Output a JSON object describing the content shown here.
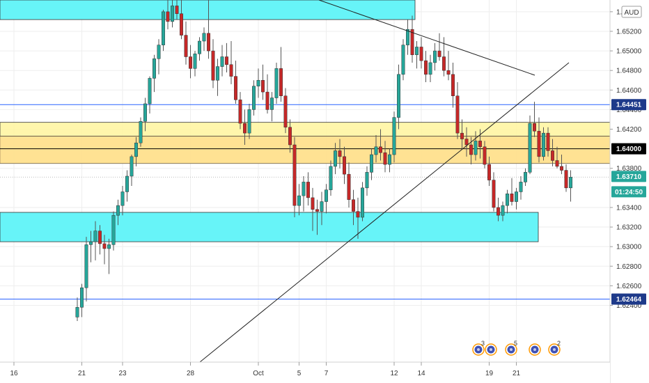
{
  "chart_data": {
    "type": "candlestick",
    "title": "",
    "currency_label": "AUD",
    "ylim": [
      1.6182,
      1.6552
    ],
    "y_ticks": [
      "1.65200",
      "1.65000",
      "1.64800",
      "1.64600",
      "1.64200",
      "1.63800",
      "1.63400",
      "1.63200",
      "1.63000",
      "1.62800",
      "1.62600"
    ],
    "y_ticks_partial": [
      "1.65400",
      "1.64400",
      "1.62400"
    ],
    "x_ticks": [
      {
        "label": "16",
        "i": -24
      },
      {
        "label": "21",
        "i": -9
      },
      {
        "label": "23",
        "i": 0
      },
      {
        "label": "28",
        "i": 15
      },
      {
        "label": "Oct",
        "i": 30
      },
      {
        "label": "5",
        "i": 39
      },
      {
        "label": "7",
        "i": 45
      },
      {
        "label": "12",
        "i": 60
      },
      {
        "label": "14",
        "i": 66
      },
      {
        "label": "19",
        "i": 81
      },
      {
        "label": "21",
        "i": 87
      }
    ],
    "first_index": -10,
    "candles": [
      [
        1.6228,
        1.6248,
        1.6224,
        1.6238
      ],
      [
        1.6238,
        1.6262,
        1.6228,
        1.6258
      ],
      [
        1.6258,
        1.631,
        1.6244,
        1.6302
      ],
      [
        1.6302,
        1.6316,
        1.6284,
        1.6305
      ],
      [
        1.6305,
        1.6326,
        1.6286,
        1.6316
      ],
      [
        1.6316,
        1.6322,
        1.6292,
        1.6303
      ],
      [
        1.6303,
        1.6312,
        1.6282,
        1.6298
      ],
      [
        1.6298,
        1.6308,
        1.6272,
        1.6302
      ],
      [
        1.6302,
        1.6336,
        1.6296,
        1.6332
      ],
      [
        1.6332,
        1.6348,
        1.6322,
        1.6342
      ],
      [
        1.6342,
        1.6362,
        1.6332,
        1.6356
      ],
      [
        1.6356,
        1.6378,
        1.6346,
        1.6372
      ],
      [
        1.6372,
        1.6394,
        1.6362,
        1.6392
      ],
      [
        1.6392,
        1.6412,
        1.6382,
        1.6406
      ],
      [
        1.6406,
        1.6432,
        1.6402,
        1.6428
      ],
      [
        1.6428,
        1.6452,
        1.6418,
        1.6446
      ],
      [
        1.6446,
        1.6474,
        1.6436,
        1.6472
      ],
      [
        1.6472,
        1.6496,
        1.6458,
        1.6492
      ],
      [
        1.6492,
        1.6512,
        1.6476,
        1.6506
      ],
      [
        1.6506,
        1.6542,
        1.65,
        1.654
      ],
      [
        1.654,
        1.6552,
        1.6522,
        1.653
      ],
      [
        1.653,
        1.6552,
        1.6524,
        1.6546
      ],
      [
        1.6546,
        1.6552,
        1.6532,
        1.6538
      ],
      [
        1.6538,
        1.6552,
        1.6512,
        1.6516
      ],
      [
        1.6516,
        1.653,
        1.6486,
        1.6494
      ],
      [
        1.6494,
        1.6506,
        1.6472,
        1.6482
      ],
      [
        1.6482,
        1.65,
        1.6474,
        1.6497
      ],
      [
        1.6497,
        1.6514,
        1.649,
        1.651
      ],
      [
        1.651,
        1.6524,
        1.65,
        1.6518
      ],
      [
        1.6518,
        1.6552,
        1.6492,
        1.65
      ],
      [
        1.65,
        1.6512,
        1.6462,
        1.647
      ],
      [
        1.647,
        1.6492,
        1.6454,
        1.6484
      ],
      [
        1.6484,
        1.6506,
        1.6474,
        1.6494
      ],
      [
        1.6494,
        1.6508,
        1.6478,
        1.6486
      ],
      [
        1.6486,
        1.651,
        1.6466,
        1.6474
      ],
      [
        1.6474,
        1.649,
        1.6446,
        1.645
      ],
      [
        1.645,
        1.6458,
        1.642,
        1.6426
      ],
      [
        1.6426,
        1.644,
        1.6404,
        1.6416
      ],
      [
        1.6416,
        1.6446,
        1.641,
        1.644
      ],
      [
        1.644,
        1.647,
        1.6434,
        1.6464
      ],
      [
        1.6464,
        1.6482,
        1.6452,
        1.647
      ],
      [
        1.647,
        1.6486,
        1.645,
        1.6458
      ],
      [
        1.6458,
        1.6476,
        1.6436,
        1.644
      ],
      [
        1.644,
        1.6458,
        1.6428,
        1.6452
      ],
      [
        1.6452,
        1.6488,
        1.6446,
        1.6482
      ],
      [
        1.6482,
        1.6504,
        1.6448,
        1.6454
      ],
      [
        1.6454,
        1.6462,
        1.6416,
        1.6422
      ],
      [
        1.6422,
        1.643,
        1.6396,
        1.6404
      ],
      [
        1.6404,
        1.6412,
        1.633,
        1.6342
      ],
      [
        1.6342,
        1.6364,
        1.6332,
        1.6352
      ],
      [
        1.6352,
        1.6372,
        1.6336,
        1.6366
      ],
      [
        1.6366,
        1.6376,
        1.6342,
        1.635
      ],
      [
        1.635,
        1.636,
        1.6316,
        1.6338
      ],
      [
        1.6338,
        1.6348,
        1.6312,
        1.6336
      ],
      [
        1.6336,
        1.6356,
        1.6322,
        1.6346
      ],
      [
        1.6346,
        1.6364,
        1.6334,
        1.6358
      ],
      [
        1.6358,
        1.6388,
        1.6352,
        1.6382
      ],
      [
        1.6382,
        1.6406,
        1.6374,
        1.6398
      ],
      [
        1.6398,
        1.641,
        1.638,
        1.6392
      ],
      [
        1.6392,
        1.6402,
        1.6364,
        1.6374
      ],
      [
        1.6374,
        1.6386,
        1.634,
        1.6348
      ],
      [
        1.6348,
        1.6358,
        1.6322,
        1.6336
      ],
      [
        1.6336,
        1.635,
        1.6308,
        1.633
      ],
      [
        1.633,
        1.6366,
        1.6326,
        1.636
      ],
      [
        1.636,
        1.6382,
        1.6352,
        1.6376
      ],
      [
        1.6376,
        1.64,
        1.6368,
        1.6394
      ],
      [
        1.6394,
        1.6414,
        1.6386,
        1.6402
      ],
      [
        1.6402,
        1.642,
        1.6388,
        1.6396
      ],
      [
        1.6396,
        1.6408,
        1.6376,
        1.6384
      ],
      [
        1.6384,
        1.64,
        1.6376,
        1.6394
      ],
      [
        1.6394,
        1.6438,
        1.6386,
        1.6432
      ],
      [
        1.6432,
        1.6486,
        1.642,
        1.6476
      ],
      [
        1.6476,
        1.6512,
        1.647,
        1.6506
      ],
      [
        1.6506,
        1.6532,
        1.6496,
        1.6522
      ],
      [
        1.6522,
        1.6536,
        1.6488,
        1.6496
      ],
      [
        1.6496,
        1.651,
        1.6482,
        1.6504
      ],
      [
        1.6504,
        1.6514,
        1.6482,
        1.649
      ],
      [
        1.649,
        1.65,
        1.6468,
        1.6476
      ],
      [
        1.6476,
        1.6496,
        1.6468,
        1.6488
      ],
      [
        1.6488,
        1.6508,
        1.648,
        1.65
      ],
      [
        1.65,
        1.6518,
        1.649,
        1.6494
      ],
      [
        1.6494,
        1.6514,
        1.6474,
        1.648
      ],
      [
        1.648,
        1.65,
        1.647,
        1.6476
      ],
      [
        1.6476,
        1.6488,
        1.6442,
        1.6454
      ],
      [
        1.6454,
        1.6468,
        1.641,
        1.6416
      ],
      [
        1.6416,
        1.643,
        1.64,
        1.641
      ],
      [
        1.641,
        1.6422,
        1.6392,
        1.6404
      ],
      [
        1.6404,
        1.6412,
        1.6384,
        1.6394
      ],
      [
        1.6394,
        1.6418,
        1.6388,
        1.6408
      ],
      [
        1.6408,
        1.642,
        1.639,
        1.6402
      ],
      [
        1.6402,
        1.6408,
        1.638,
        1.6384
      ],
      [
        1.6384,
        1.6392,
        1.6362,
        1.6368
      ],
      [
        1.6368,
        1.6376,
        1.6336,
        1.634
      ],
      [
        1.634,
        1.635,
        1.6326,
        1.6332
      ],
      [
        1.6332,
        1.6346,
        1.6326,
        1.6342
      ],
      [
        1.6342,
        1.6358,
        1.6334,
        1.6354
      ],
      [
        1.6354,
        1.637,
        1.6342,
        1.6346
      ],
      [
        1.6346,
        1.636,
        1.6338,
        1.6356
      ]
    ],
    "candles_recent": [
      [
        1.6356,
        1.6372,
        1.6348,
        1.6366
      ],
      [
        1.6366,
        1.638,
        1.6362,
        1.6376
      ],
      [
        1.6376,
        1.6434,
        1.6374,
        1.6426
      ],
      [
        1.6426,
        1.6448,
        1.6412,
        1.6418
      ],
      [
        1.6418,
        1.6432,
        1.6386,
        1.6392
      ],
      [
        1.6392,
        1.6422,
        1.6388,
        1.6416
      ],
      [
        1.6416,
        1.6422,
        1.6392,
        1.6398
      ],
      [
        1.6398,
        1.641,
        1.6382,
        1.6388
      ],
      [
        1.6388,
        1.6402,
        1.638,
        1.6382
      ],
      [
        1.6382,
        1.6394,
        1.6374,
        1.6378
      ],
      [
        1.6378,
        1.6384,
        1.6356,
        1.636
      ],
      [
        1.636,
        1.6378,
        1.6346,
        1.6371
      ]
    ],
    "horizontal_lines": [
      {
        "price": 1.64451,
        "color": "#2962ff",
        "label": "1.64451"
      },
      {
        "price": 1.64,
        "color": "#000000",
        "label": "1.64000"
      },
      {
        "price": 1.62464,
        "color": "#2962ff",
        "label": "1.62464"
      }
    ],
    "current_price": {
      "price": 1.6371,
      "label": "1.63710",
      "countdown": "01:24:50",
      "color": "#26a69a"
    },
    "zones": [
      {
        "name": "supply-zone",
        "color": "#5ff3f8",
        "y1": 1.6552,
        "y2": 1.6532
      },
      {
        "name": "middle-zone",
        "color": "#fff59d",
        "y1": 1.6427,
        "y2": 1.6385
      },
      {
        "name": "demand-zone",
        "color": "#5ff3f8",
        "y1": 1.6335,
        "y2": 1.6305
      }
    ],
    "event_markers": [
      "3",
      "",
      "5",
      "",
      "2"
    ],
    "colors": {
      "up": "#26a69a",
      "down": "#c62828",
      "wick": "#555555"
    }
  }
}
